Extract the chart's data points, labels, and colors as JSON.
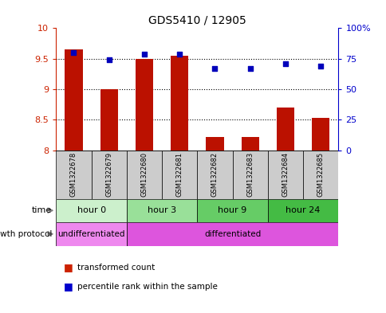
{
  "title": "GDS5410 / 12905",
  "samples": [
    "GSM1322678",
    "GSM1322679",
    "GSM1322680",
    "GSM1322681",
    "GSM1322682",
    "GSM1322683",
    "GSM1322684",
    "GSM1322685"
  ],
  "transformed_count": [
    9.65,
    9.0,
    9.5,
    9.55,
    8.22,
    8.22,
    8.7,
    8.53
  ],
  "percentile_rank": [
    80,
    74,
    79,
    79,
    67,
    67,
    71,
    69
  ],
  "ylim_left": [
    8,
    10
  ],
  "ylim_right": [
    0,
    100
  ],
  "yticks_left": [
    8,
    8.5,
    9,
    9.5,
    10
  ],
  "yticks_right": [
    0,
    25,
    50,
    75,
    100
  ],
  "ytick_labels_left": [
    "8",
    "8.5",
    "9",
    "9.5",
    "10"
  ],
  "ytick_labels_right": [
    "0",
    "25",
    "50",
    "75",
    "100%"
  ],
  "time_groups": [
    {
      "label": "hour 0",
      "start": 0,
      "end": 2,
      "color": "#ccf0cc"
    },
    {
      "label": "hour 3",
      "start": 2,
      "end": 4,
      "color": "#99e099"
    },
    {
      "label": "hour 9",
      "start": 4,
      "end": 6,
      "color": "#66cc66"
    },
    {
      "label": "hour 24",
      "start": 6,
      "end": 8,
      "color": "#44bb44"
    }
  ],
  "growth_groups": [
    {
      "label": "undifferentiated",
      "start": 0,
      "end": 2,
      "color": "#ee88ee"
    },
    {
      "label": "differentiated",
      "start": 2,
      "end": 8,
      "color": "#dd55dd"
    }
  ],
  "bar_color": "#bb1100",
  "dot_color": "#0000bb",
  "grid_color": "#000000",
  "bg_color": "#ffffff",
  "left_axis_color": "#cc2200",
  "right_axis_color": "#0000cc",
  "bar_bottom": 8.0,
  "sample_box_color": "#cccccc",
  "legend_bar_color": "#cc2200",
  "legend_dot_color": "#0000cc"
}
